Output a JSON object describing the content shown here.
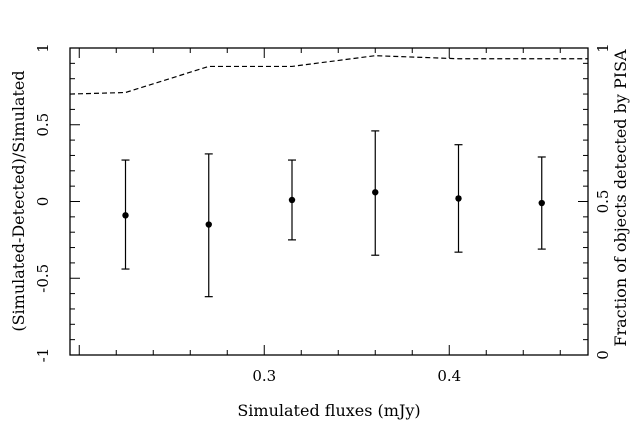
{
  "chart_data": {
    "type": "scatter",
    "xlabel": "Simulated fluxes (mJy)",
    "ylabel": "(Simulated-Detected)/Simulated",
    "y2label": "Fraction of objects detected by PISA",
    "xlim": [
      0.195,
      0.475
    ],
    "ylim": [
      -1.0,
      1.0
    ],
    "y2lim": [
      0,
      1
    ],
    "x_ticks": [
      0.3,
      0.4
    ],
    "x_tick_labels": [
      "0.3",
      "0.4"
    ],
    "y_ticks": [
      -1,
      -0.5,
      0,
      0.5,
      1
    ],
    "y_tick_labels": [
      "-1",
      "-0.5",
      "0",
      "0.5",
      "1"
    ],
    "y2_ticks": [
      0,
      0.5,
      1
    ],
    "y2_tick_labels": [
      "0",
      "0.5",
      "1"
    ],
    "grid": false,
    "series": [
      {
        "style": "points-with-errorbars",
        "axis": "left",
        "x": [
          0.225,
          0.27,
          0.315,
          0.36,
          0.405,
          0.45
        ],
        "y": [
          -0.09,
          -0.15,
          0.01,
          0.06,
          0.02,
          -0.01
        ],
        "y_low": [
          -0.44,
          -0.62,
          -0.25,
          -0.35,
          -0.33,
          -0.31
        ],
        "y_high": [
          0.27,
          0.31,
          0.27,
          0.46,
          0.37,
          0.29
        ]
      },
      {
        "style": "dashed-line",
        "axis": "right",
        "x": [
          0.195,
          0.225,
          0.27,
          0.315,
          0.36,
          0.405,
          0.45,
          0.475
        ],
        "y": [
          0.85,
          0.855,
          0.94,
          0.94,
          0.975,
          0.965,
          0.965,
          0.965
        ]
      }
    ]
  }
}
